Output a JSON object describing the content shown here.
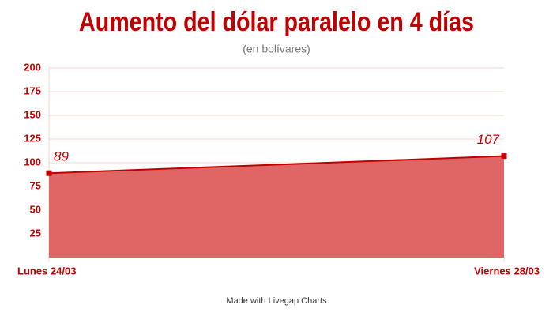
{
  "chart_data": {
    "type": "area",
    "title": "Aumento del dólar paralelo en 4 días",
    "subtitle": "(en bolívares)",
    "categories": [
      "Lunes 24/03",
      "Viernes 28/03"
    ],
    "values": [
      89,
      107
    ],
    "color": "#c00000",
    "fill_color": "#e06666",
    "ylim": [
      0,
      200
    ],
    "yticks": [
      25,
      50,
      75,
      100,
      125,
      150,
      175,
      200
    ],
    "grid": true,
    "credit": "Made with Livegap Charts"
  }
}
